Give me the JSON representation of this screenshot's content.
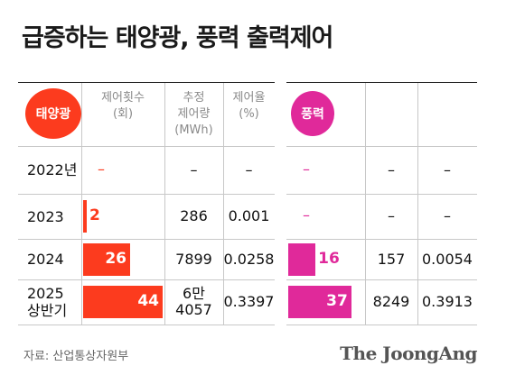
{
  "title": "급증하는 태양광, 풍력 출력제어",
  "colors": {
    "solar": "#fc3b1e",
    "wind": "#e0299a",
    "header": "#8a8a8a"
  },
  "chart_data": {
    "type": "table",
    "title": "급증하는 태양광, 풍력 출력제어",
    "groups": [
      {
        "name": "태양광",
        "columns": [
          "제어횟수\n(회)",
          "추정\n제어량\n(MWh)",
          "제어율\n(%)"
        ],
        "counts": [
          null,
          2,
          26,
          44
        ],
        "amounts": [
          "–",
          "286",
          "7899",
          "6만\n4057"
        ],
        "rates": [
          "–",
          "0.001",
          "0.0258",
          "0.3397"
        ]
      },
      {
        "name": "풍력",
        "counts": [
          null,
          null,
          16,
          37
        ],
        "amounts": [
          "–",
          "–",
          "157",
          "8249"
        ],
        "rates": [
          "–",
          "–",
          "0.0054",
          "0.3913"
        ]
      }
    ],
    "rows": [
      "2022년",
      "2023",
      "2024",
      "2025\n상반기"
    ],
    "x_max": 44
  },
  "source": "자료: 산업통상자원부",
  "logo": "The JoongAng"
}
